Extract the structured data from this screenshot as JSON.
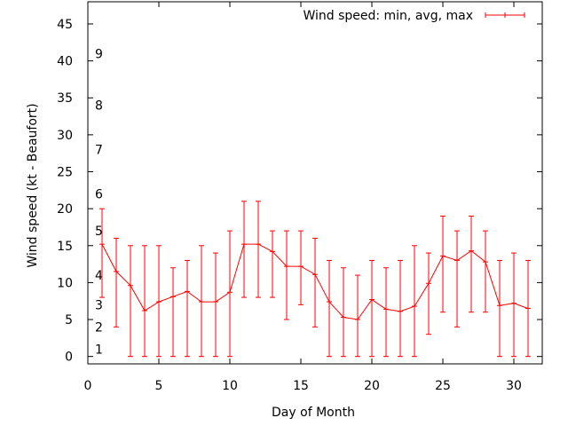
{
  "chart_data": {
    "type": "line",
    "xlabel": "Day of Month",
    "ylabel": "Wind speed (kt - Beaufort)",
    "xlim": [
      0,
      32
    ],
    "ylim": [
      -1,
      48
    ],
    "xticks": [
      0,
      5,
      10,
      15,
      20,
      25,
      30
    ],
    "yticks": [
      0,
      5,
      10,
      15,
      20,
      25,
      30,
      35,
      40,
      45
    ],
    "grid": false,
    "legend_position": "top-right",
    "beaufort_labels": [
      {
        "label": "1",
        "y": 1
      },
      {
        "label": "2",
        "y": 4
      },
      {
        "label": "3",
        "y": 7
      },
      {
        "label": "4",
        "y": 11
      },
      {
        "label": "5",
        "y": 17
      },
      {
        "label": "6",
        "y": 22
      },
      {
        "label": "7",
        "y": 28
      },
      {
        "label": "8",
        "y": 34
      },
      {
        "label": "9",
        "y": 41
      }
    ],
    "series": [
      {
        "name": "Wind speed: min, avg, max",
        "color": "#ff0000",
        "x": [
          1,
          2,
          3,
          4,
          5,
          6,
          7,
          8,
          9,
          10,
          11,
          12,
          13,
          14,
          15,
          16,
          17,
          18,
          19,
          20,
          21,
          22,
          23,
          24,
          25,
          26,
          27,
          28,
          29,
          30,
          31
        ],
        "min": [
          8,
          4,
          0,
          0,
          0,
          0,
          0,
          0,
          0,
          0,
          8,
          8,
          8,
          5,
          7,
          4,
          0,
          0,
          0,
          0,
          0,
          0,
          0,
          3,
          6,
          4,
          6,
          6,
          0,
          0,
          0
        ],
        "avg": [
          15.2,
          11.5,
          9.6,
          6.2,
          7.4,
          8.1,
          8.8,
          7.4,
          7.4,
          8.7,
          15.2,
          15.2,
          14.2,
          12.2,
          12.2,
          11.1,
          7.4,
          5.3,
          5.0,
          7.7,
          6.4,
          6.1,
          6.8,
          9.9,
          13.6,
          13.0,
          14.3,
          12.8,
          6.9,
          7.2,
          6.5
        ],
        "max": [
          20,
          16,
          15,
          15,
          15,
          12,
          13,
          15,
          14,
          17,
          21,
          21,
          17,
          17,
          17,
          16,
          13,
          12,
          11,
          13,
          12,
          13,
          15,
          14,
          19,
          17,
          19,
          17,
          13,
          14,
          13
        ]
      }
    ]
  }
}
